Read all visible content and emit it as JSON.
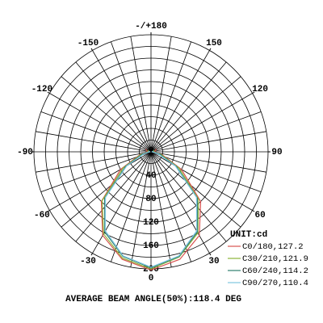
{
  "chart_data": {
    "type": "polar",
    "legend_title": "UNIT:cd",
    "footnote": "AVERAGE BEAM ANGLE(50%):118.4 DEG",
    "x": [
      -120,
      -105,
      -90,
      -75,
      -60,
      -45,
      -30,
      -15,
      0,
      15,
      30,
      45,
      60,
      75,
      90,
      105,
      120
    ],
    "xticks": [
      {
        "value": 180,
        "label": "-/+180"
      },
      150,
      120,
      90,
      60,
      30,
      0,
      -30,
      -60,
      -90,
      -120,
      -150
    ],
    "ylim": [
      0,
      200
    ],
    "yticks": [
      0,
      40,
      80,
      120,
      160,
      200
    ],
    "grid": true,
    "legend": "lower right",
    "series": [
      {
        "name": "C0/180,127.2",
        "color": "#d9534f",
        "values": [
          10,
          8,
          5,
          20,
          60,
          120,
          165,
          190,
          202,
          190,
          165,
          120,
          60,
          20,
          5,
          8,
          10
        ]
      },
      {
        "name": "C30/210,121.9",
        "color": "#8db33a",
        "values": [
          6,
          5,
          4,
          18,
          55,
          118,
          162,
          188,
          200,
          186,
          160,
          115,
          55,
          18,
          4,
          5,
          6
        ]
      },
      {
        "name": "C60/240,114.2",
        "color": "#2f7f6f",
        "values": [
          4,
          3,
          3,
          15,
          50,
          112,
          158,
          185,
          198,
          185,
          158,
          112,
          50,
          15,
          3,
          3,
          4
        ]
      },
      {
        "name": "C90/270,110.4",
        "color": "#7fc6e0",
        "values": [
          3,
          3,
          2,
          12,
          48,
          110,
          156,
          184,
          197,
          184,
          156,
          110,
          48,
          12,
          2,
          3,
          3
        ]
      }
    ]
  }
}
